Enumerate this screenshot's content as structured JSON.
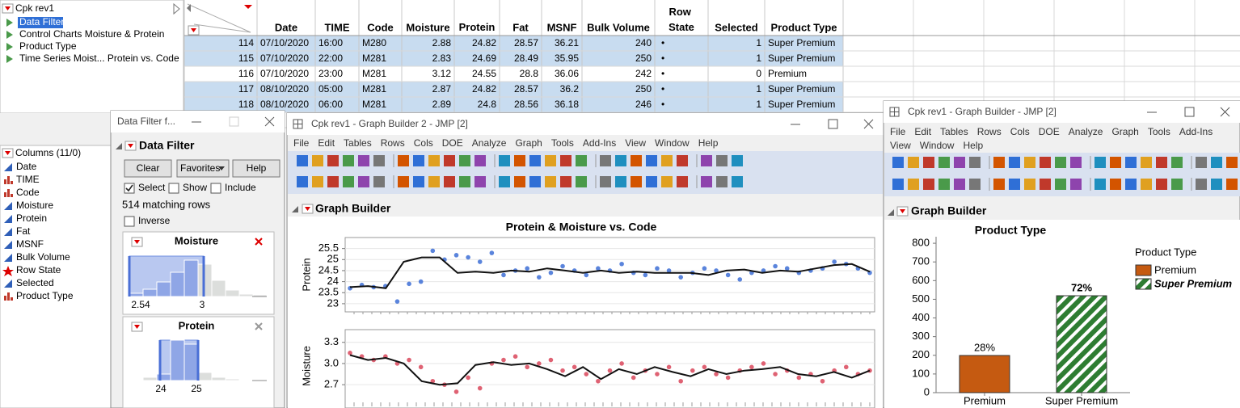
{
  "table_panel": {
    "title": "Cpk rev1",
    "scripts": [
      "Data Filter",
      "Control Charts Moisture & Protein",
      "Product Type",
      "Time Series Moist... Protein vs. Code"
    ]
  },
  "columns_panel": {
    "title": "Columns (11/0)",
    "columns": [
      "Date",
      "TIME",
      "Code",
      "Moisture",
      "Protein",
      "Fat",
      "MSNF",
      "Bulk Volume",
      "Row State",
      "Selected",
      "Product Type"
    ]
  },
  "data_table": {
    "headers": [
      "Date",
      "TIME",
      "Code",
      "Moisture",
      "Protein",
      "Fat",
      "MSNF",
      "Bulk Volume",
      "Row State",
      "Selected",
      "Product Type"
    ],
    "rows": [
      [
        "114",
        "07/10/2020",
        "16:00",
        "M280",
        "2.88",
        "24.82",
        "28.57",
        "36.21",
        "240",
        "•",
        "1",
        "Super Premium"
      ],
      [
        "115",
        "07/10/2020",
        "22:00",
        "M281",
        "2.83",
        "24.69",
        "28.49",
        "35.95",
        "250",
        "•",
        "1",
        "Super Premium"
      ],
      [
        "116",
        "07/10/2020",
        "23:00",
        "M281",
        "3.12",
        "24.55",
        "28.8",
        "36.06",
        "242",
        "•",
        "0",
        "Premium"
      ],
      [
        "117",
        "08/10/2020",
        "05:00",
        "M281",
        "2.87",
        "24.82",
        "28.57",
        "36.2",
        "250",
        "•",
        "1",
        "Super Premium"
      ],
      [
        "118",
        "08/10/2020",
        "06:00",
        "M281",
        "2.89",
        "24.8",
        "28.56",
        "36.18",
        "246",
        "•",
        "1",
        "Super Premium"
      ]
    ]
  },
  "data_filter": {
    "window_title": "Data Filter f...",
    "title": "Data Filter",
    "buttons": [
      "Clear",
      "Favorites",
      "Help"
    ],
    "options": [
      "Select",
      "Show",
      "Include"
    ],
    "matching": "514 matching rows",
    "inverse": "Inverse",
    "filters": [
      {
        "name": "Moisture",
        "ticks": [
          "2.54",
          "3"
        ],
        "bars": [
          4,
          9,
          18,
          30,
          45,
          40,
          20,
          8,
          3,
          2
        ]
      },
      {
        "name": "Protein",
        "ticks": [
          "24",
          "25"
        ],
        "bars": [
          1,
          4,
          8,
          50,
          45,
          10,
          4,
          2,
          1,
          1
        ]
      }
    ]
  },
  "graph_builder_2": {
    "window_title": "Cpk rev1 - Graph Builder 2 - JMP [2]",
    "menu": [
      "File",
      "Edit",
      "Tables",
      "Rows",
      "Cols",
      "DOE",
      "Analyze",
      "Graph",
      "Tools",
      "Add-Ins",
      "View",
      "Window",
      "Help"
    ],
    "outline": "Graph Builder",
    "chart": {
      "type": "scatter",
      "title": "Protein & Moisture vs. Code",
      "panels": [
        {
          "ylabel": "Protein",
          "ylim": [
            22.63,
            26.0
          ],
          "yticks": [
            23,
            23.5,
            24,
            24.5,
            25,
            25.5
          ],
          "color": "#3d6fd6",
          "points": [
            23.7,
            23.85,
            23.75,
            23.8,
            23.1,
            23.9,
            24.0,
            25.4,
            25.0,
            25.2,
            25.1,
            24.9,
            25.3,
            24.3,
            24.5,
            24.6,
            24.2,
            24.4,
            24.7,
            24.5,
            24.3,
            24.6,
            24.5,
            24.8,
            24.4,
            24.3,
            24.6,
            24.5,
            24.2,
            24.4,
            24.6,
            24.5,
            24.3,
            24.1,
            24.4,
            24.5,
            24.7,
            24.6,
            24.4,
            24.5,
            24.6,
            24.9,
            24.8,
            24.6,
            24.4
          ],
          "smoother": [
            23.75,
            23.8,
            23.7,
            24.9,
            25.1,
            25.1,
            24.4,
            24.45,
            24.4,
            24.5,
            24.45,
            24.6,
            24.5,
            24.4,
            24.5,
            24.4,
            24.45,
            24.4,
            24.4,
            24.4,
            24.3,
            24.5,
            24.55,
            24.4,
            24.5,
            24.45,
            24.6,
            24.75,
            24.8,
            24.45
          ]
        },
        {
          "ylabel": "Moisture",
          "ylim": [
            2.45,
            3.48
          ],
          "yticks": [
            2.7,
            {
              "value": 3,
              "label": "3.0"
            },
            3.3
          ],
          "color": "#d9475a",
          "points": [
            3.15,
            3.1,
            3.05,
            3.1,
            3.0,
            3.05,
            2.95,
            2.75,
            2.7,
            2.6,
            2.8,
            2.65,
            3.0,
            3.05,
            3.1,
            2.95,
            3.0,
            3.05,
            2.9,
            2.95,
            2.85,
            2.75,
            2.9,
            3.0,
            2.8,
            2.9,
            2.85,
            2.95,
            2.75,
            2.9,
            2.95,
            2.85,
            2.8,
            2.9,
            2.95,
            3.0,
            2.85,
            2.9,
            2.8,
            2.85,
            2.75,
            2.9,
            2.95,
            2.85,
            2.9
          ],
          "smoother": [
            3.12,
            3.05,
            3.08,
            3.0,
            2.75,
            2.7,
            2.72,
            2.98,
            3.02,
            2.98,
            3.0,
            2.92,
            2.82,
            2.95,
            2.78,
            2.92,
            2.85,
            2.95,
            2.88,
            2.82,
            2.92,
            2.85,
            2.9,
            2.92,
            2.95,
            2.85,
            2.82,
            2.88,
            2.8,
            2.9
          ]
        }
      ]
    }
  },
  "graph_builder": {
    "window_title": "Cpk rev1 - Graph Builder - JMP [2]",
    "menu": [
      "File",
      "Edit",
      "Tables",
      "Rows",
      "Cols",
      "DOE",
      "Analyze",
      "Graph",
      "Tools",
      "Add-Ins",
      "View",
      "Window",
      "Help"
    ],
    "outline": "Graph Builder",
    "chart": {
      "type": "bar",
      "title": "Product Type",
      "categories": [
        "Premium",
        "Super Premium"
      ],
      "values": [
        199,
        519
      ],
      "value_labels": [
        "28%",
        "72%"
      ],
      "colors": [
        "#c55a11",
        "#2e7d32"
      ],
      "ylim": [
        0,
        835
      ],
      "yticks": [
        0,
        100,
        200,
        300,
        400,
        500,
        600,
        700,
        800
      ],
      "legend_title": "Product Type"
    }
  }
}
